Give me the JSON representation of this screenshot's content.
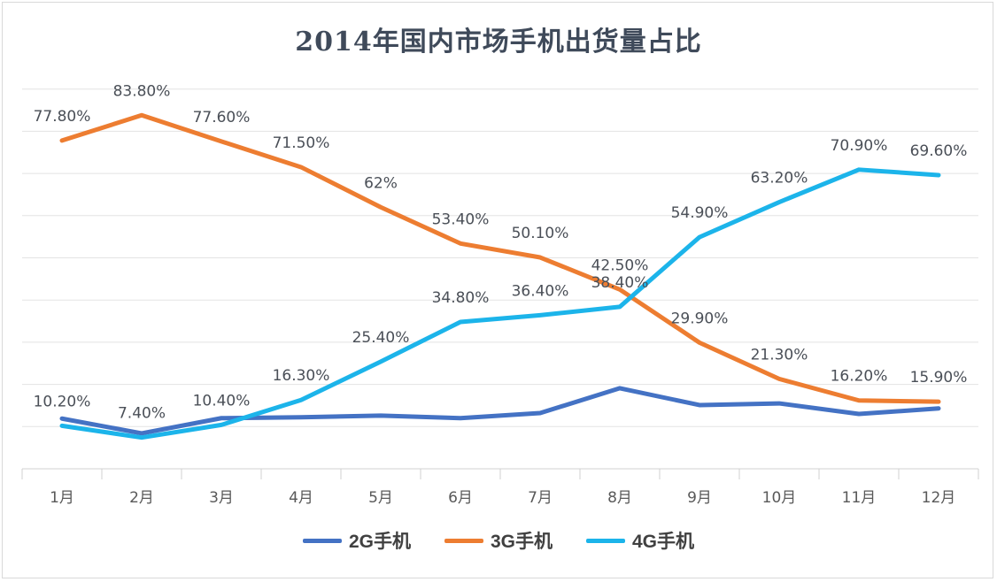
{
  "chart_data": {
    "type": "line",
    "title": "2014年国内市场手机出货量占比",
    "categories": [
      "1月",
      "2月",
      "3月",
      "4月",
      "5月",
      "6月",
      "7月",
      "8月",
      "9月",
      "10月",
      "11月",
      "12月"
    ],
    "ylim": [
      0,
      90
    ],
    "grid": true,
    "legend": "bottom",
    "series": [
      {
        "name": "2G手机",
        "color": "#4472C4",
        "values": [
          11.9,
          8.4,
          12.0,
          12.2,
          12.6,
          12.0,
          13.2,
          19.1,
          15.1,
          15.5,
          13.0,
          14.3
        ],
        "labels": []
      },
      {
        "name": "3G手机",
        "color": "#ED7D31",
        "values": [
          77.8,
          83.8,
          77.6,
          71.5,
          62,
          53.4,
          50.1,
          42.5,
          29.9,
          21.3,
          16.2,
          15.9
        ],
        "labels": [
          "77.80%",
          "83.80%",
          "77.60%",
          "71.50%",
          "62%",
          "53.40%",
          "50.10%",
          "42.50%",
          "29.90%",
          "21.30%",
          "16.20%",
          "15.90%"
        ]
      },
      {
        "name": "4G手机",
        "color": "#1CB4EA",
        "values": [
          10.2,
          7.4,
          10.4,
          16.3,
          25.4,
          34.8,
          36.4,
          38.4,
          54.9,
          63.2,
          70.9,
          69.6
        ],
        "labels": [
          "10.20%",
          "7.40%",
          "10.40%",
          "16.30%",
          "25.40%",
          "34.80%",
          "36.40%",
          "38.40%",
          "54.90%",
          "63.20%",
          "70.90%",
          "69.60%"
        ]
      }
    ]
  }
}
